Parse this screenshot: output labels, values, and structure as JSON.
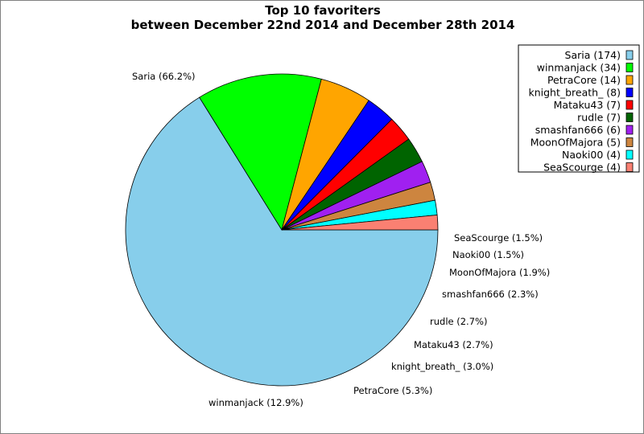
{
  "chart_data": {
    "type": "pie",
    "title": "Top 10 favoriters",
    "subtitle": "between December 22nd 2014 and December 28th 2014",
    "slices": [
      {
        "name": "Saria",
        "value": 174,
        "percent_label": "Saria (66.2%)",
        "legend_label": "Saria (174)",
        "color": "#87ceeb"
      },
      {
        "name": "winmanjack",
        "value": 34,
        "percent_label": "winmanjack (12.9%)",
        "legend_label": "winmanjack (34)",
        "color": "#00ff00"
      },
      {
        "name": "PetraCore",
        "value": 14,
        "percent_label": "PetraCore (5.3%)",
        "legend_label": "PetraCore (14)",
        "color": "#ffa500"
      },
      {
        "name": "knight_breath_",
        "value": 8,
        "percent_label": "knight_breath_ (3.0%)",
        "legend_label": "knight_breath_ (8)",
        "color": "#0000ff"
      },
      {
        "name": "Mataku43",
        "value": 7,
        "percent_label": "Mataku43 (2.7%)",
        "legend_label": "Mataku43 (7)",
        "color": "#ff0000"
      },
      {
        "name": "rudle",
        "value": 7,
        "percent_label": "rudle (2.7%)",
        "legend_label": "rudle (7)",
        "color": "#006400"
      },
      {
        "name": "smashfan666",
        "value": 6,
        "percent_label": "smashfan666 (2.3%)",
        "legend_label": "smashfan666 (6)",
        "color": "#a020f0"
      },
      {
        "name": "MoonOfMajora",
        "value": 5,
        "percent_label": "MoonOfMajora (1.9%)",
        "legend_label": "MoonOfMajora (5)",
        "color": "#cd853f"
      },
      {
        "name": "Naoki00",
        "value": 4,
        "percent_label": "Naoki00 (1.5%)",
        "legend_label": "Naoki00 (4)",
        "color": "#00ffff"
      },
      {
        "name": "SeaScourge",
        "value": 4,
        "percent_label": "SeaScourge (1.5%)",
        "legend_label": "SeaScourge (4)",
        "color": "#fa8072"
      }
    ],
    "start_angle": "3 o'clock",
    "direction": "clockwise",
    "legend_position": "top-right"
  }
}
